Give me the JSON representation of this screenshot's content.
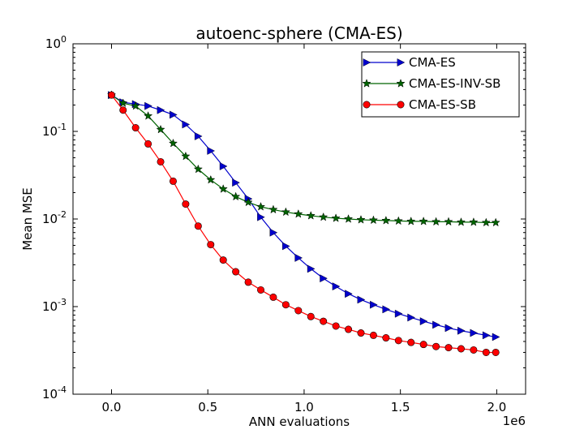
{
  "chart_data": {
    "type": "line",
    "title": "autoenc-sphere (CMA-ES)",
    "xlabel": "ANN evaluations",
    "ylabel": "Mean MSE",
    "x_offset_label": "1e6",
    "xscale": "linear",
    "yscale": "log",
    "xlim": [
      -200000,
      2150000
    ],
    "ylim": [
      0.0001,
      1
    ],
    "grid": false,
    "legend_position": "top-right",
    "x_ticks": [
      {
        "value": 0,
        "label": "0.0"
      },
      {
        "value": 500000,
        "label": "0.5"
      },
      {
        "value": 1000000,
        "label": "1.0"
      },
      {
        "value": 1500000,
        "label": "1.5"
      },
      {
        "value": 2000000,
        "label": "2.0"
      }
    ],
    "y_ticks": [
      {
        "value": 0.0001,
        "base": "10",
        "exp": "-4"
      },
      {
        "value": 0.001,
        "base": "10",
        "exp": "-3"
      },
      {
        "value": 0.01,
        "base": "10",
        "exp": "-2"
      },
      {
        "value": 0.1,
        "base": "10",
        "exp": "-1"
      },
      {
        "value": 1,
        "base": "10",
        "exp": "0"
      }
    ],
    "series": [
      {
        "name": "CMA-ES",
        "color": "#0000cc",
        "marker": "triangle-right",
        "x": [
          0,
          60000,
          125000,
          190000,
          255000,
          320000,
          385000,
          450000,
          515000,
          580000,
          645000,
          710000,
          775000,
          840000,
          905000,
          970000,
          1035000,
          1100000,
          1165000,
          1230000,
          1295000,
          1360000,
          1425000,
          1490000,
          1555000,
          1620000,
          1685000,
          1750000,
          1815000,
          1880000,
          1945000,
          1995000
        ],
        "y": [
          0.26,
          0.215,
          0.205,
          0.195,
          0.175,
          0.155,
          0.12,
          0.088,
          0.06,
          0.04,
          0.026,
          0.017,
          0.0105,
          0.007,
          0.0049,
          0.0036,
          0.0027,
          0.0021,
          0.0017,
          0.0014,
          0.0012,
          0.00105,
          0.00093,
          0.00083,
          0.00075,
          0.00068,
          0.00062,
          0.00057,
          0.00053,
          0.0005,
          0.00047,
          0.00045
        ]
      },
      {
        "name": "CMA-ES-INV-SB",
        "color": "#006400",
        "marker": "star",
        "x": [
          0,
          60000,
          125000,
          190000,
          255000,
          320000,
          385000,
          450000,
          515000,
          580000,
          645000,
          710000,
          775000,
          840000,
          905000,
          970000,
          1035000,
          1100000,
          1165000,
          1230000,
          1295000,
          1360000,
          1425000,
          1490000,
          1555000,
          1620000,
          1685000,
          1750000,
          1815000,
          1880000,
          1945000,
          1995000
        ],
        "y": [
          0.26,
          0.21,
          0.195,
          0.15,
          0.105,
          0.073,
          0.052,
          0.037,
          0.028,
          0.022,
          0.018,
          0.0155,
          0.0138,
          0.0128,
          0.012,
          0.0114,
          0.0109,
          0.0105,
          0.0102,
          0.01,
          0.0098,
          0.0097,
          0.0096,
          0.0095,
          0.0094,
          0.0094,
          0.0093,
          0.0093,
          0.0092,
          0.0092,
          0.0091,
          0.0091
        ]
      },
      {
        "name": "CMA-ES-SB",
        "color": "#ff0000",
        "marker": "circle",
        "x": [
          0,
          60000,
          125000,
          190000,
          255000,
          320000,
          385000,
          450000,
          515000,
          580000,
          645000,
          710000,
          775000,
          840000,
          905000,
          970000,
          1035000,
          1100000,
          1165000,
          1230000,
          1295000,
          1360000,
          1425000,
          1490000,
          1555000,
          1620000,
          1685000,
          1750000,
          1815000,
          1880000,
          1945000,
          1995000
        ],
        "y": [
          0.26,
          0.175,
          0.11,
          0.072,
          0.045,
          0.027,
          0.0148,
          0.0083,
          0.0051,
          0.0034,
          0.0025,
          0.0019,
          0.00155,
          0.00128,
          0.00105,
          0.0009,
          0.00077,
          0.00068,
          0.0006,
          0.00055,
          0.0005,
          0.00047,
          0.00044,
          0.00041,
          0.00039,
          0.00037,
          0.00035,
          0.00034,
          0.00033,
          0.00032,
          0.0003,
          0.0003
        ]
      }
    ]
  }
}
